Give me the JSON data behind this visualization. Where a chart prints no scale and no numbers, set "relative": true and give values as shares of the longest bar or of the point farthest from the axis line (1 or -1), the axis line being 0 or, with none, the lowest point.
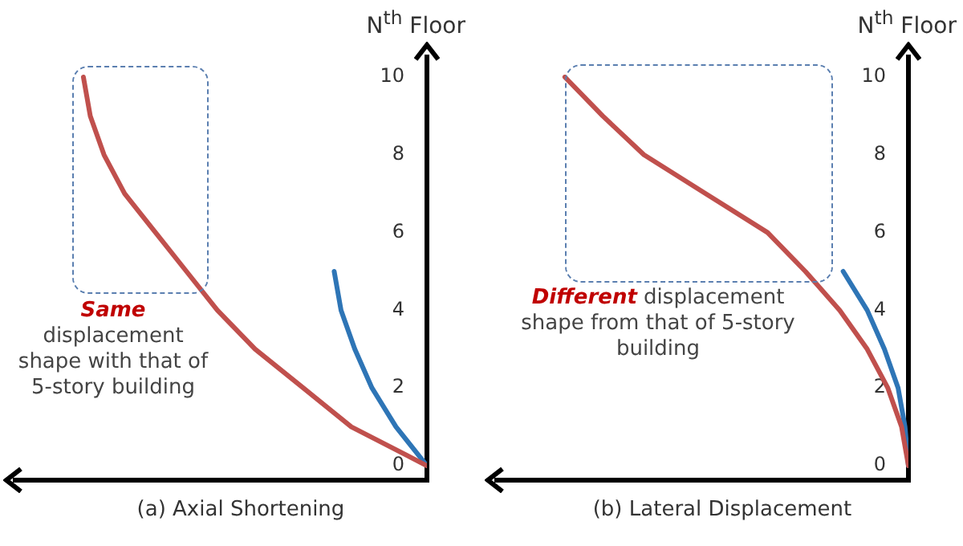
{
  "chart_data": [
    {
      "type": "line",
      "orientation": "horizontal",
      "xlabel": "(a) Axial Shortening",
      "ylabel": "N$^{th}$ Floor",
      "relative": true,
      "categories": [
        "10",
        null,
        "8",
        null,
        "6",
        null,
        "4",
        null,
        "2",
        null,
        "0"
      ],
      "tick_labels": "y",
      "grid": false,
      "legend": false,
      "marker": "none",
      "line_style": "solid",
      "series": [
        {
          "color": "#c0504d",
          "values": [
            -1,
            -0.98,
            -0.94,
            -0.88,
            -0.79,
            -0.7,
            -0.61,
            -0.5,
            -0.36,
            -0.22,
            0
          ]
        },
        {
          "color": "#2e75b6",
          "values": [
            null,
            null,
            null,
            null,
            null,
            -0.27,
            -0.25,
            -0.21,
            -0.16,
            -0.09,
            0
          ]
        }
      ],
      "annotations": [
        "Same displacement shape with that of 5-story building"
      ]
    },
    {
      "type": "line",
      "orientation": "horizontal",
      "xlabel": "(b) Lateral Displacement",
      "ylabel": "N$^{th}$ Floor",
      "relative": true,
      "categories": [
        "10",
        null,
        "8",
        null,
        "6",
        null,
        "4",
        null,
        "2",
        null,
        "0"
      ],
      "tick_labels": "y",
      "grid": false,
      "legend": false,
      "marker": "none",
      "line_style": "solid",
      "series": [
        {
          "color": "#c0504d",
          "values": [
            -1,
            -0.89,
            -0.77,
            -0.59,
            -0.41,
            -0.3,
            -0.2,
            -0.12,
            -0.06,
            -0.02,
            0
          ]
        },
        {
          "color": "#2e75b6",
          "values": [
            null,
            null,
            null,
            null,
            null,
            -0.19,
            -0.12,
            -0.07,
            -0.03,
            -0.01,
            0
          ]
        }
      ],
      "annotations": [
        "Different displacement shape from that of 5-story building"
      ]
    }
  ]
}
